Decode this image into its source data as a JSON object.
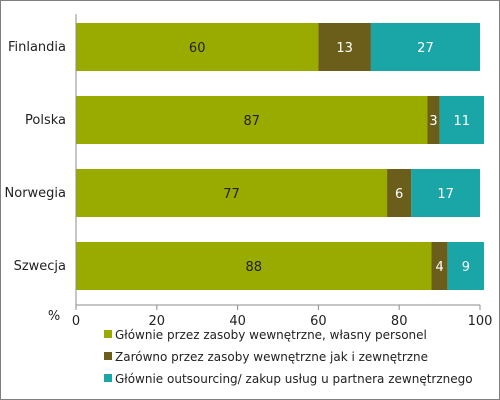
{
  "chart_data": {
    "type": "bar",
    "orientation": "horizontal",
    "stacked": true,
    "categories": [
      "Finlandia",
      "Polska",
      "Norwegia",
      "Szwecja"
    ],
    "series": [
      {
        "name": "Głównie przez zasoby wewnętrzne, własny personel",
        "values": [
          60,
          87,
          77,
          88
        ],
        "color": "#9aab00",
        "label_color": "#222222"
      },
      {
        "name": "Zarówno przez zasoby wewnętrzne jak i zewnętrzne",
        "values": [
          13,
          3,
          6,
          4
        ],
        "color": "#6b5e1a",
        "label_color": "#ffffff"
      },
      {
        "name": "Głównie outsourcing/ zakup usług u partnera zewnętrznego",
        "values": [
          27,
          11,
          17,
          9
        ],
        "color": "#1aa5a7",
        "label_color": "#ffffff"
      }
    ],
    "xlabel": "%",
    "xlim": [
      0,
      100
    ],
    "xticks": [
      0,
      20,
      40,
      60,
      80,
      100
    ],
    "grid": false,
    "legend_position": "bottom"
  }
}
